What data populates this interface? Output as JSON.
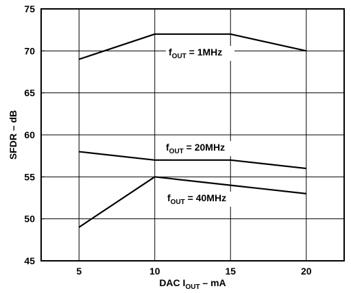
{
  "chart_data": {
    "type": "line",
    "xlabel": {
      "main": "DAC I",
      "sub": "OUT",
      "suffix": " – mA"
    },
    "ylabel": "SFDR – dB",
    "xlim": [
      2.5,
      22.5
    ],
    "ylim": [
      45,
      75
    ],
    "x_ticks": [
      5,
      10,
      15,
      20
    ],
    "y_ticks": [
      45,
      50,
      55,
      60,
      65,
      70,
      75
    ],
    "grid": true,
    "series": [
      {
        "name": {
          "main": "f",
          "sub": "OUT",
          "suffix": " = 1MHz"
        },
        "x": [
          5,
          10,
          15,
          20
        ],
        "y": [
          69,
          72,
          72,
          70
        ]
      },
      {
        "name": {
          "main": "f",
          "sub": "OUT",
          "suffix": " = 20MHz"
        },
        "x": [
          5,
          10,
          15,
          20
        ],
        "y": [
          58,
          57,
          57,
          56
        ]
      },
      {
        "name": {
          "main": "f",
          "sub": "OUT",
          "suffix": " = 40MHz"
        },
        "x": [
          5,
          10,
          15,
          20
        ],
        "y": [
          49,
          55,
          54,
          53
        ]
      }
    ]
  }
}
